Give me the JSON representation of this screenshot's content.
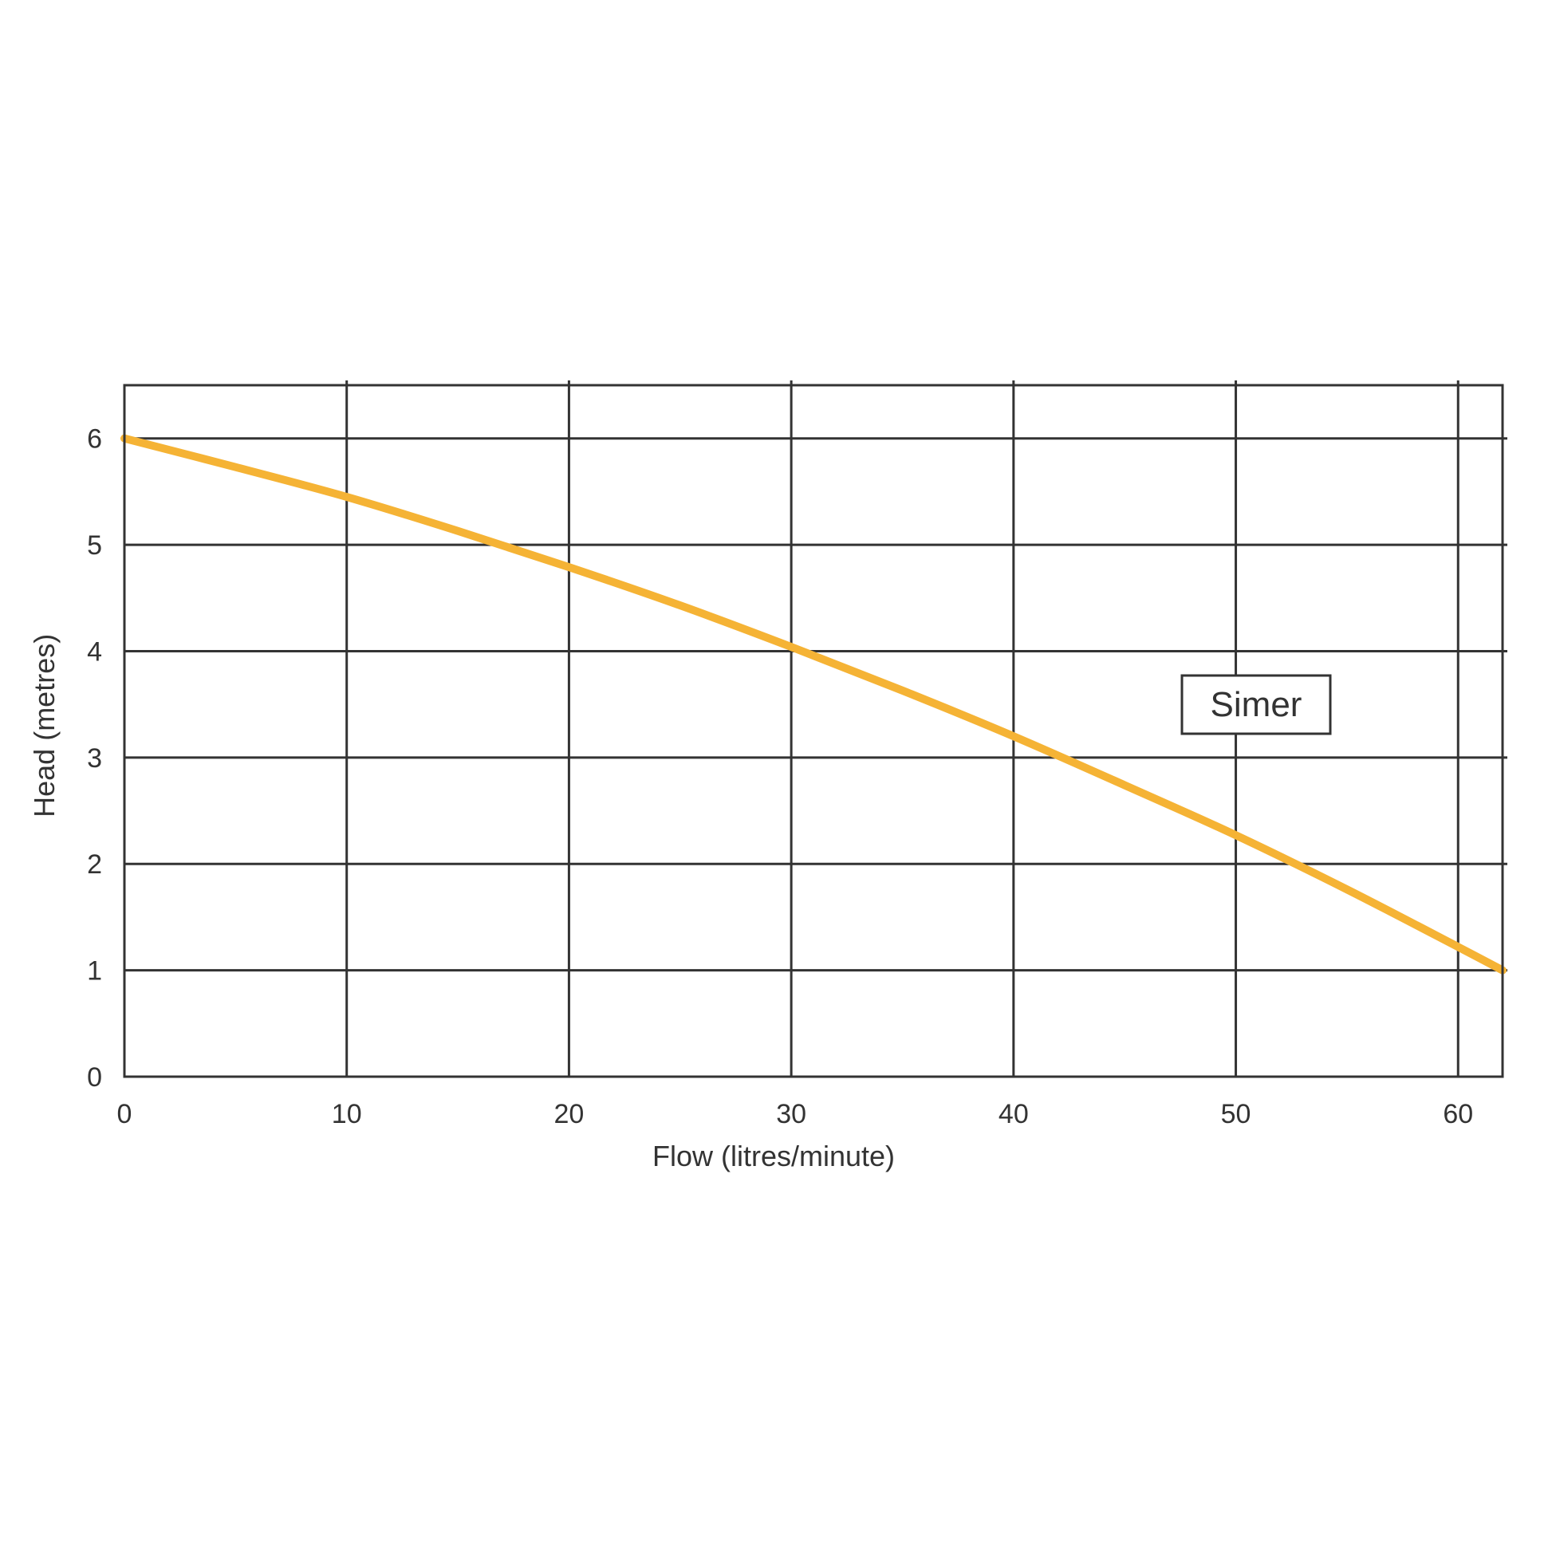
{
  "chart_data": {
    "type": "line",
    "title": "",
    "xlabel": "Flow (litres/minute)",
    "ylabel": "Head (metres)",
    "xlim": [
      0,
      62
    ],
    "ylim": [
      0,
      6.5
    ],
    "x_ticks": [
      0,
      10,
      20,
      30,
      40,
      50,
      60
    ],
    "y_ticks": [
      0,
      1,
      2,
      3,
      4,
      5,
      6
    ],
    "grid": true,
    "legend": "inside-right",
    "series": [
      {
        "name": "Simer",
        "color": "#f5b335",
        "x": [
          0,
          5,
          10,
          15,
          20,
          25,
          30,
          35,
          40,
          45,
          50,
          55,
          60,
          62
        ],
        "y": [
          6.0,
          5.73,
          5.45,
          5.13,
          4.79,
          4.43,
          4.04,
          3.63,
          3.2,
          2.74,
          2.27,
          1.76,
          1.22,
          1.0
        ]
      }
    ]
  }
}
